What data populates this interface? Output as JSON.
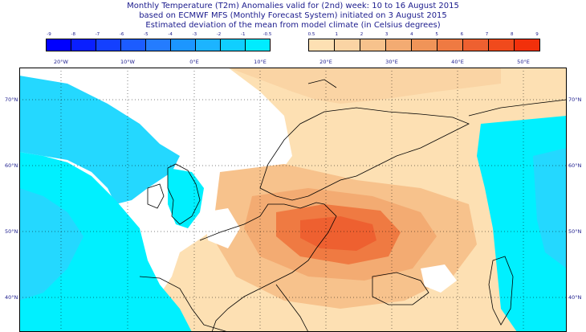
{
  "title": {
    "line1": "Monthly Temperature (T2m) Anomalies valid for (2nd) week: 10 to 16 August 2015",
    "line2": "based on ECMWF MFS (Monthly Forecast System) initiated on 3 August 2015",
    "line3": "Estimated deviation of the mean from model climate (in Celsius degrees)"
  },
  "legend": {
    "cold": {
      "ticks": [
        "-9",
        "-8",
        "-7",
        "-6",
        "-5",
        "-4",
        "-3",
        "-2",
        "-1",
        "-0.5"
      ],
      "colors": [
        "#0000ff",
        "#0a1fff",
        "#1440ff",
        "#1c5cff",
        "#247cff",
        "#1c96ff",
        "#1cb4ff",
        "#10cfff",
        "#00ecff"
      ]
    },
    "warm": {
      "ticks": [
        "0.5",
        "1",
        "2",
        "3",
        "4",
        "5",
        "6",
        "7",
        "8",
        "9"
      ],
      "colors": [
        "#fde0b3",
        "#fad4a4",
        "#f7c28c",
        "#f3ab72",
        "#f09458",
        "#ef7a42",
        "#ee6030",
        "#f04a1c",
        "#f2300b"
      ]
    }
  },
  "map": {
    "lon_labels": [
      "20°W",
      "10°W",
      "0°E",
      "10°E",
      "20°E",
      "30°E",
      "40°E",
      "50°E"
    ],
    "lat_labels": [
      "70°N",
      "60°N",
      "50°N",
      "40°N"
    ],
    "colors": {
      "cold_light": "#00f0ff",
      "cold_mid": "#24d8ff",
      "neutral": "#ffffff",
      "warm1": "#fde0b3",
      "warm2": "#f7c28c",
      "warm3": "#f3ab72",
      "warm4": "#ef7a42",
      "warm5": "#ee6030",
      "coast": "#000000"
    }
  }
}
